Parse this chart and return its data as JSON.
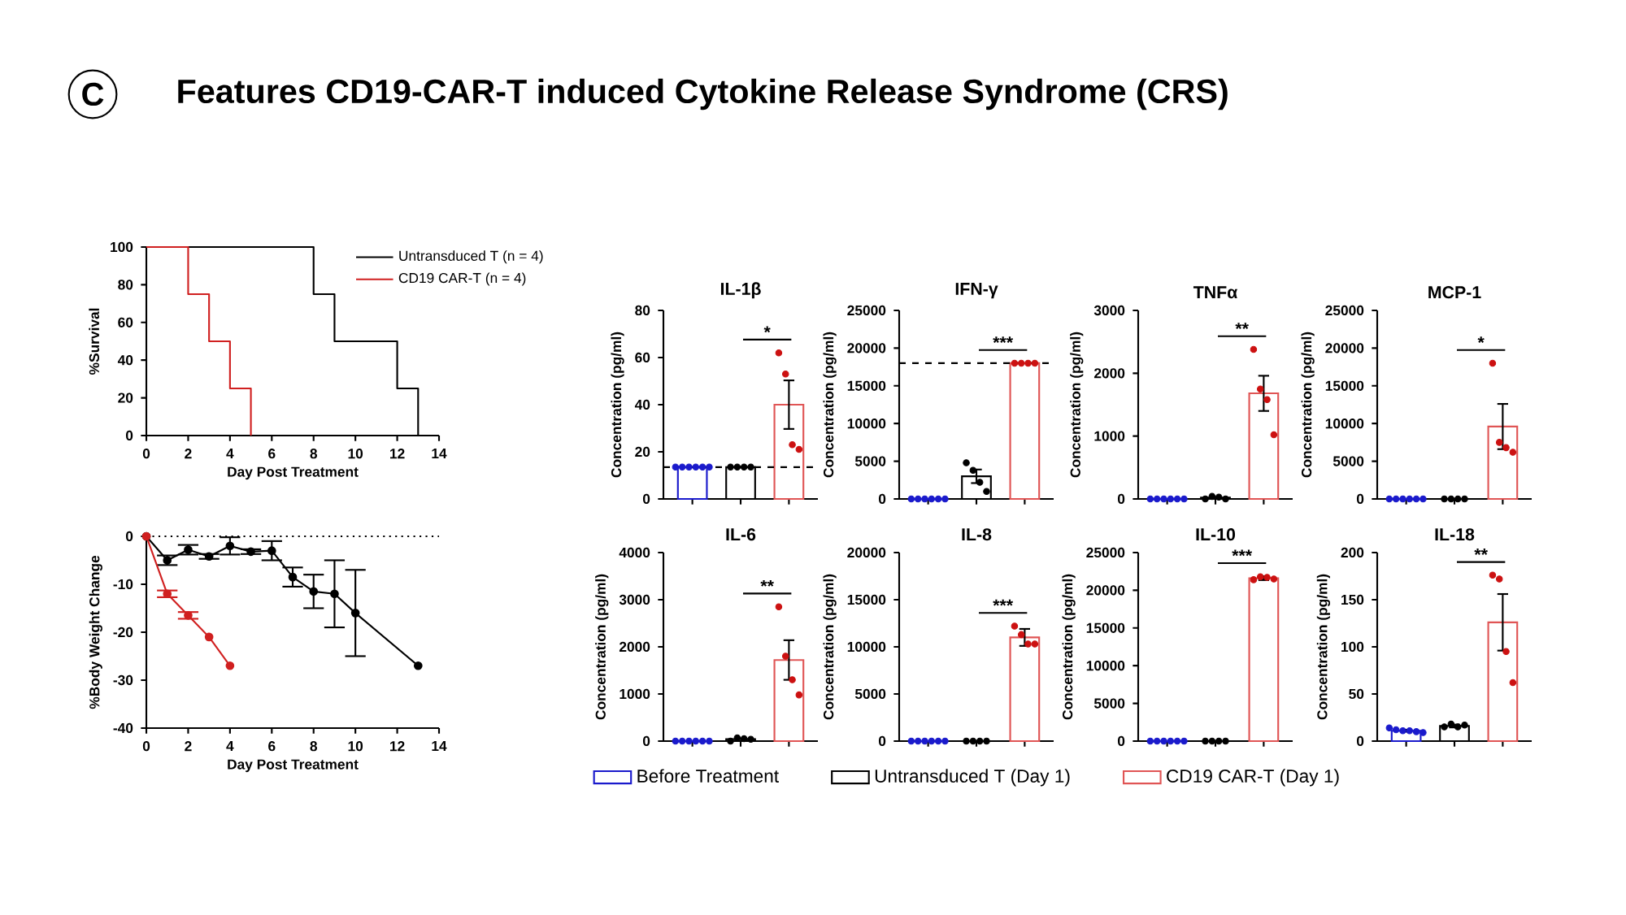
{
  "chart_data": [
    {
      "type": "other",
      "title": "Features CD19-CAR-T induced Cytokine Release Syndrome (CRS)",
      "annotations": [
        "C"
      ]
    },
    {
      "type": "step",
      "xlabel": "Day Post Treatment",
      "ylabel": "%Survival",
      "xlim": [
        0,
        14
      ],
      "xticks": [
        0,
        2,
        4,
        6,
        8,
        10,
        12,
        14
      ],
      "ylim": [
        0,
        100
      ],
      "yticks": [
        0,
        20,
        40,
        60,
        80,
        100
      ],
      "legend": "top right",
      "series": [
        {
          "name": "Untransduced T (n = 4)",
          "color": "#000000",
          "x": [
            0,
            8,
            9,
            12,
            13
          ],
          "values": [
            100,
            75,
            50,
            25,
            0
          ]
        },
        {
          "name": "CD19 CAR-T (n = 4)",
          "color": "#d02020",
          "x": [
            0,
            2,
            3,
            4,
            5
          ],
          "values": [
            100,
            75,
            50,
            25,
            0
          ]
        }
      ]
    },
    {
      "type": "line",
      "xlabel": "Day Post Treatment",
      "ylabel": "%Body Weight Change",
      "xlim": [
        0,
        14
      ],
      "xticks": [
        0,
        2,
        4,
        6,
        8,
        10,
        12,
        14
      ],
      "ylim": [
        -40,
        0
      ],
      "yticks": [
        -40,
        -30,
        -20,
        -10,
        0
      ],
      "marker": "circle",
      "ref_lines": [
        {
          "axis": "y",
          "value": 0,
          "line_style": "dotted"
        }
      ],
      "series": [
        {
          "color": "#000000",
          "x": [
            0,
            1,
            2,
            3,
            4,
            5,
            6,
            7,
            8,
            9,
            10,
            13
          ],
          "values": [
            0,
            -5,
            -2.8,
            -4.2,
            -2,
            -3.2,
            -3,
            -8.5,
            -11.5,
            -12,
            -16,
            -27
          ],
          "errors": [
            null,
            1,
            1,
            0.5,
            1.8,
            0.5,
            2,
            2,
            3.5,
            7,
            9,
            null
          ]
        },
        {
          "color": "#d02020",
          "x": [
            0,
            1,
            2,
            3,
            4
          ],
          "values": [
            0,
            -12,
            -16.5,
            -21,
            -27
          ],
          "errors": [
            null,
            0.7,
            0.7,
            null,
            null
          ]
        }
      ]
    },
    {
      "type": "bar",
      "title": "IL-1β",
      "ylabel": "Concentration (pg/ml)",
      "categories": [
        null,
        null,
        null
      ],
      "tick_labels": "y",
      "ylim": [
        0,
        80
      ],
      "yticks": [
        0,
        20,
        40,
        60,
        80
      ],
      "ref_lines": [
        {
          "axis": "y",
          "value": 13.5,
          "line_style": "dashed"
        }
      ],
      "annotations": [
        "*"
      ],
      "series": [
        {
          "color": "#1a1acc",
          "values": [
            13.5,
            null,
            null
          ]
        },
        {
          "color": "#000000",
          "values": [
            null,
            13.5,
            null
          ]
        },
        {
          "color": "#e05555",
          "values": [
            null,
            null,
            40
          ],
          "errors": [
            null,
            null,
            10.3
          ]
        },
        {
          "type": "scatter",
          "colors": [
            "#1a1acc",
            "#000000",
            "#cc1111"
          ],
          "values": [
            13.5,
            13.5,
            62
          ]
        },
        {
          "type": "scatter",
          "colors": [
            "#1a1acc",
            "#000000",
            "#cc1111"
          ],
          "values": [
            13.5,
            13.5,
            53
          ]
        },
        {
          "type": "scatter",
          "colors": [
            "#1a1acc",
            "#000000",
            "#cc1111"
          ],
          "values": [
            13.5,
            13.5,
            23
          ]
        },
        {
          "type": "scatter",
          "colors": [
            "#1a1acc",
            "#000000",
            "#cc1111"
          ],
          "values": [
            13.5,
            13.5,
            21
          ]
        },
        {
          "type": "scatter",
          "colors": [
            "#1a1acc",
            "#000000",
            "#cc1111"
          ],
          "values": [
            13.5,
            null,
            null
          ]
        },
        {
          "type": "scatter",
          "colors": [
            "#1a1acc",
            "#000000",
            "#cc1111"
          ],
          "values": [
            13.5,
            null,
            null
          ]
        }
      ]
    },
    {
      "type": "bar",
      "title": "IFN-γ",
      "ylabel": "Concentration (pg/ml)",
      "categories": [
        null,
        null,
        null
      ],
      "tick_labels": "y",
      "ylim": [
        0,
        25000
      ],
      "yticks": [
        0,
        5000,
        10000,
        15000,
        20000,
        25000
      ],
      "ref_lines": [
        {
          "axis": "y",
          "value": 18000,
          "line_style": "dashed"
        }
      ],
      "annotations": [
        "***"
      ],
      "series": [
        {
          "color": "#1a1acc",
          "values": [
            0,
            null,
            null
          ]
        },
        {
          "color": "#000000",
          "values": [
            null,
            3000,
            null
          ],
          "errors": [
            null,
            900,
            null
          ]
        },
        {
          "color": "#e05555",
          "values": [
            null,
            null,
            18000
          ]
        },
        {
          "type": "scatter",
          "colors": [
            "#1a1acc",
            "#000000",
            "#cc1111"
          ],
          "values": [
            0,
            4800,
            18000
          ]
        },
        {
          "type": "scatter",
          "colors": [
            "#1a1acc",
            "#000000",
            "#cc1111"
          ],
          "values": [
            0,
            3800,
            18000
          ]
        },
        {
          "type": "scatter",
          "colors": [
            "#1a1acc",
            "#000000",
            "#cc1111"
          ],
          "values": [
            0,
            2200,
            18000
          ]
        },
        {
          "type": "scatter",
          "colors": [
            "#1a1acc",
            "#000000",
            "#cc1111"
          ],
          "values": [
            0,
            1000,
            18000
          ]
        },
        {
          "type": "scatter",
          "colors": [
            "#1a1acc",
            "#000000",
            "#cc1111"
          ],
          "values": [
            0,
            null,
            null
          ]
        },
        {
          "type": "scatter",
          "colors": [
            "#1a1acc",
            "#000000",
            "#cc1111"
          ],
          "values": [
            0,
            null,
            null
          ]
        }
      ]
    },
    {
      "type": "bar",
      "title": "TNFα",
      "ylabel": "Concentration (pg/ml)",
      "categories": [
        null,
        null,
        null
      ],
      "tick_labels": "y",
      "ylim": [
        0,
        3000
      ],
      "yticks": [
        0,
        1000,
        2000,
        3000
      ],
      "annotations": [
        "**"
      ],
      "series": [
        {
          "color": "#1a1acc",
          "values": [
            0,
            null,
            null
          ]
        },
        {
          "color": "#000000",
          "values": [
            null,
            20,
            null
          ]
        },
        {
          "color": "#e05555",
          "values": [
            null,
            null,
            1680
          ],
          "errors": [
            null,
            null,
            280
          ]
        },
        {
          "type": "scatter",
          "colors": [
            "#1a1acc",
            "#000000",
            "#cc1111"
          ],
          "values": [
            0,
            0,
            2380
          ]
        },
        {
          "type": "scatter",
          "colors": [
            "#1a1acc",
            "#000000",
            "#cc1111"
          ],
          "values": [
            0,
            40,
            1750
          ]
        },
        {
          "type": "scatter",
          "colors": [
            "#1a1acc",
            "#000000",
            "#cc1111"
          ],
          "values": [
            0,
            30,
            1580
          ]
        },
        {
          "type": "scatter",
          "colors": [
            "#1a1acc",
            "#000000",
            "#cc1111"
          ],
          "values": [
            0,
            0,
            1020
          ]
        },
        {
          "type": "scatter",
          "colors": [
            "#1a1acc",
            "#000000",
            "#cc1111"
          ],
          "values": [
            0,
            null,
            null
          ]
        },
        {
          "type": "scatter",
          "colors": [
            "#1a1acc",
            "#000000",
            "#cc1111"
          ],
          "values": [
            0,
            null,
            null
          ]
        }
      ]
    },
    {
      "type": "bar",
      "title": "MCP-1",
      "ylabel": "Concentration (pg/ml)",
      "categories": [
        null,
        null,
        null
      ],
      "tick_labels": "y",
      "ylim": [
        0,
        25000
      ],
      "yticks": [
        0,
        5000,
        10000,
        15000,
        20000,
        25000
      ],
      "annotations": [
        "*"
      ],
      "series": [
        {
          "color": "#1a1acc",
          "values": [
            0,
            null,
            null
          ]
        },
        {
          "color": "#000000",
          "values": [
            null,
            0,
            null
          ]
        },
        {
          "color": "#e05555",
          "values": [
            null,
            null,
            9600
          ],
          "errors": [
            null,
            null,
            3000
          ]
        },
        {
          "type": "scatter",
          "colors": [
            "#1a1acc",
            "#000000",
            "#cc1111"
          ],
          "values": [
            0,
            0,
            18000
          ]
        },
        {
          "type": "scatter",
          "colors": [
            "#1a1acc",
            "#000000",
            "#cc1111"
          ],
          "values": [
            0,
            0,
            7500
          ]
        },
        {
          "type": "scatter",
          "colors": [
            "#1a1acc",
            "#000000",
            "#cc1111"
          ],
          "values": [
            0,
            0,
            6800
          ]
        },
        {
          "type": "scatter",
          "colors": [
            "#1a1acc",
            "#000000",
            "#cc1111"
          ],
          "values": [
            0,
            0,
            6200
          ]
        },
        {
          "type": "scatter",
          "colors": [
            "#1a1acc",
            "#000000",
            "#cc1111"
          ],
          "values": [
            0,
            null,
            null
          ]
        },
        {
          "type": "scatter",
          "colors": [
            "#1a1acc",
            "#000000",
            "#cc1111"
          ],
          "values": [
            0,
            null,
            null
          ]
        }
      ]
    },
    {
      "type": "bar",
      "title": "IL-6",
      "ylabel": "Concentration (pg/ml)",
      "categories": [
        null,
        null,
        null
      ],
      "tick_labels": "y",
      "ylim": [
        0,
        4000
      ],
      "yticks": [
        0,
        1000,
        2000,
        3000,
        4000
      ],
      "annotations": [
        "**"
      ],
      "series": [
        {
          "color": "#1a1acc",
          "values": [
            0,
            null,
            null
          ]
        },
        {
          "color": "#000000",
          "values": [
            null,
            40,
            null
          ]
        },
        {
          "color": "#e05555",
          "values": [
            null,
            null,
            1720
          ],
          "errors": [
            null,
            null,
            420
          ]
        },
        {
          "type": "scatter",
          "colors": [
            "#1a1acc",
            "#000000",
            "#cc1111"
          ],
          "values": [
            0,
            0,
            2850
          ]
        },
        {
          "type": "scatter",
          "colors": [
            "#1a1acc",
            "#000000",
            "#cc1111"
          ],
          "values": [
            0,
            70,
            1800
          ]
        },
        {
          "type": "scatter",
          "colors": [
            "#1a1acc",
            "#000000",
            "#cc1111"
          ],
          "values": [
            0,
            50,
            1300
          ]
        },
        {
          "type": "scatter",
          "colors": [
            "#1a1acc",
            "#000000",
            "#cc1111"
          ],
          "values": [
            0,
            40,
            980
          ]
        },
        {
          "type": "scatter",
          "colors": [
            "#1a1acc",
            "#000000",
            "#cc1111"
          ],
          "values": [
            0,
            null,
            null
          ]
        },
        {
          "type": "scatter",
          "colors": [
            "#1a1acc",
            "#000000",
            "#cc1111"
          ],
          "values": [
            0,
            null,
            null
          ]
        }
      ]
    },
    {
      "type": "bar",
      "title": "IL-8",
      "ylabel": "Concentration (pg/ml)",
      "categories": [
        null,
        null,
        null
      ],
      "tick_labels": "y",
      "ylim": [
        0,
        20000
      ],
      "yticks": [
        0,
        5000,
        10000,
        15000,
        20000
      ],
      "legend": "bottom",
      "annotations": [
        "***"
      ],
      "series": [
        {
          "name": "Before Treatment",
          "color": "#1a1acc",
          "values": [
            0,
            null,
            null
          ]
        },
        {
          "name": "Untransduced T (Day 1)",
          "color": "#000000",
          "values": [
            null,
            0,
            null
          ]
        },
        {
          "name": "CD19 CAR-T (Day 1)",
          "color": "#e05555",
          "values": [
            null,
            null,
            11000
          ],
          "errors": [
            null,
            null,
            900
          ]
        },
        {
          "type": "scatter",
          "colors": [
            "#1a1acc",
            "#000000",
            "#cc1111"
          ],
          "values": [
            0,
            0,
            12200
          ]
        },
        {
          "type": "scatter",
          "colors": [
            "#1a1acc",
            "#000000",
            "#cc1111"
          ],
          "values": [
            0,
            0,
            11300
          ]
        },
        {
          "type": "scatter",
          "colors": [
            "#1a1acc",
            "#000000",
            "#cc1111"
          ],
          "values": [
            0,
            0,
            10300
          ]
        },
        {
          "type": "scatter",
          "colors": [
            "#1a1acc",
            "#000000",
            "#cc1111"
          ],
          "values": [
            0,
            0,
            10300
          ]
        },
        {
          "type": "scatter",
          "colors": [
            "#1a1acc",
            "#000000",
            "#cc1111"
          ],
          "values": [
            0,
            null,
            null
          ]
        },
        {
          "type": "scatter",
          "colors": [
            "#1a1acc",
            "#000000",
            "#cc1111"
          ],
          "values": [
            0,
            null,
            null
          ]
        }
      ]
    },
    {
      "type": "bar",
      "title": "IL-10",
      "ylabel": "Concentration (pg/ml)",
      "categories": [
        null,
        null,
        null
      ],
      "tick_labels": "y",
      "ylim": [
        0,
        25000
      ],
      "yticks": [
        0,
        5000,
        10000,
        15000,
        20000,
        25000
      ],
      "annotations": [
        "***"
      ],
      "series": [
        {
          "color": "#1a1acc",
          "values": [
            0,
            null,
            null
          ]
        },
        {
          "color": "#000000",
          "values": [
            null,
            0,
            null
          ]
        },
        {
          "color": "#e05555",
          "values": [
            null,
            null,
            21600
          ],
          "errors": [
            null,
            null,
            250
          ]
        },
        {
          "type": "scatter",
          "colors": [
            "#1a1acc",
            "#000000",
            "#cc1111"
          ],
          "values": [
            0,
            0,
            21400
          ]
        },
        {
          "type": "scatter",
          "colors": [
            "#1a1acc",
            "#000000",
            "#cc1111"
          ],
          "values": [
            0,
            0,
            21800
          ]
        },
        {
          "type": "scatter",
          "colors": [
            "#1a1acc",
            "#000000",
            "#cc1111"
          ],
          "values": [
            0,
            0,
            21700
          ]
        },
        {
          "type": "scatter",
          "colors": [
            "#1a1acc",
            "#000000",
            "#cc1111"
          ],
          "values": [
            0,
            0,
            21500
          ]
        },
        {
          "type": "scatter",
          "colors": [
            "#1a1acc",
            "#000000",
            "#cc1111"
          ],
          "values": [
            0,
            null,
            null
          ]
        },
        {
          "type": "scatter",
          "colors": [
            "#1a1acc",
            "#000000",
            "#cc1111"
          ],
          "values": [
            0,
            null,
            null
          ]
        }
      ]
    },
    {
      "type": "bar",
      "title": "IL-18",
      "ylabel": "Concentration (pg/ml)",
      "categories": [
        null,
        null,
        null
      ],
      "tick_labels": "y",
      "ylim": [
        0,
        200
      ],
      "yticks": [
        0,
        50,
        100,
        150,
        200
      ],
      "annotations": [
        "**"
      ],
      "series": [
        {
          "color": "#1a1acc",
          "values": [
            11,
            null,
            null
          ],
          "errors": [
            1,
            null,
            null
          ]
        },
        {
          "color": "#000000",
          "values": [
            null,
            16,
            null
          ],
          "errors": [
            null,
            1.5,
            null
          ]
        },
        {
          "color": "#e05555",
          "values": [
            null,
            null,
            126
          ],
          "errors": [
            null,
            null,
            30
          ]
        },
        {
          "type": "scatter",
          "colors": [
            "#1a1acc",
            "#000000",
            "#cc1111"
          ],
          "values": [
            14,
            15,
            176
          ]
        },
        {
          "type": "scatter",
          "colors": [
            "#1a1acc",
            "#000000",
            "#cc1111"
          ],
          "values": [
            12,
            18,
            172
          ]
        },
        {
          "type": "scatter",
          "colors": [
            "#1a1acc",
            "#000000",
            "#cc1111"
          ],
          "values": [
            11,
            15,
            95
          ]
        },
        {
          "type": "scatter",
          "colors": [
            "#1a1acc",
            "#000000",
            "#cc1111"
          ],
          "values": [
            11,
            17,
            62
          ]
        },
        {
          "type": "scatter",
          "colors": [
            "#1a1acc",
            "#000000",
            "#cc1111"
          ],
          "values": [
            10,
            null,
            null
          ]
        },
        {
          "type": "scatter",
          "colors": [
            "#1a1acc",
            "#000000",
            "#cc1111"
          ],
          "values": [
            9,
            null,
            null
          ]
        }
      ]
    }
  ]
}
